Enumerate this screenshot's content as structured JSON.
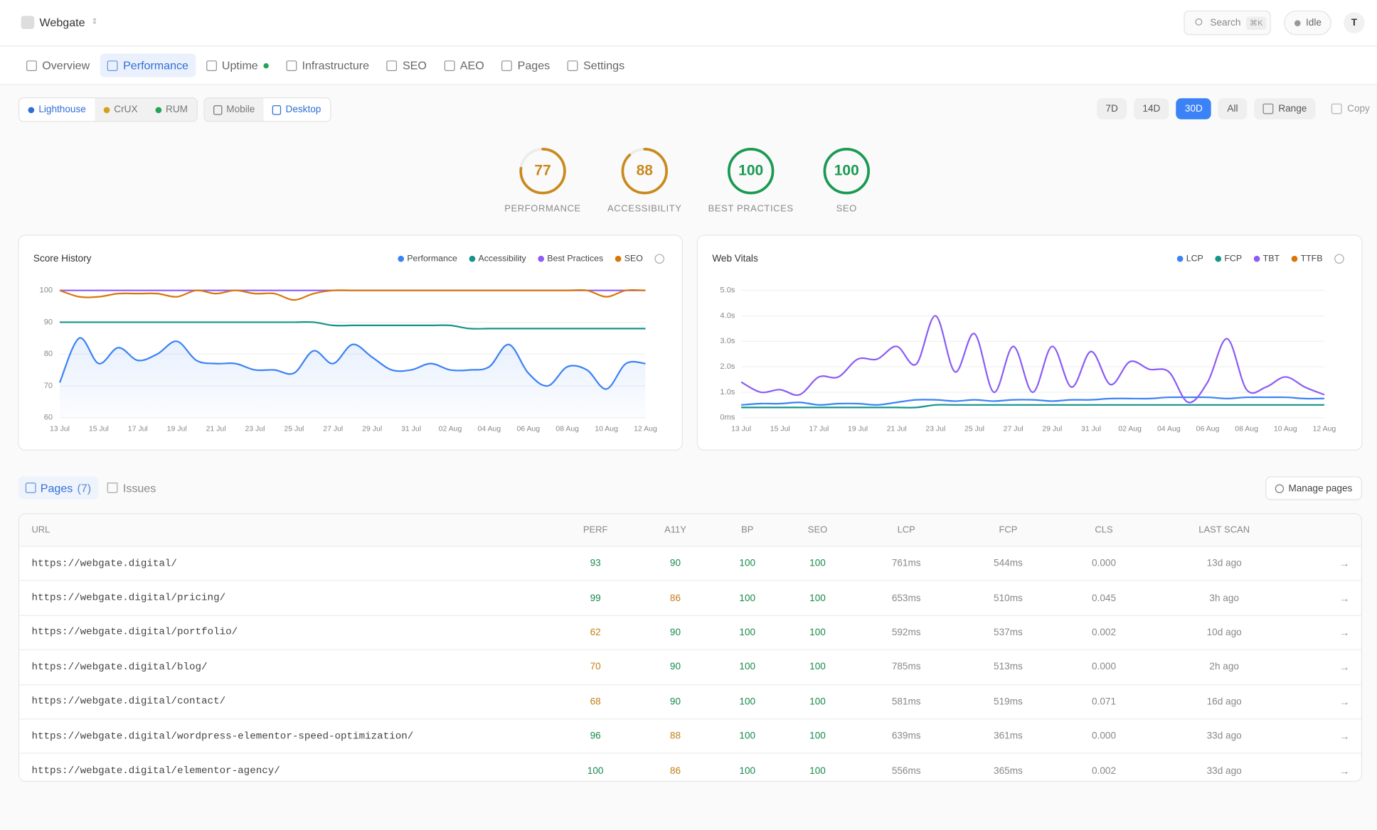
{
  "header": {
    "brand": "Webgate",
    "search": "Search",
    "shortcut": "⌘K",
    "status": "Idle",
    "avatar": "T"
  },
  "nav": [
    "Overview",
    "Performance",
    "Uptime",
    "Infrastructure",
    "SEO",
    "AEO",
    "Pages",
    "Settings"
  ],
  "toolbar": {
    "sources": [
      "Lighthouse",
      "CrUX",
      "RUM"
    ],
    "devices": [
      "Mobile",
      "Desktop"
    ],
    "ranges": [
      "7D",
      "14D",
      "30D",
      "All"
    ],
    "range": "Range",
    "copy": "Copy"
  },
  "scores": [
    {
      "label": "PERFORMANCE",
      "value": 77
    },
    {
      "label": "ACCESSIBILITY",
      "value": 88
    },
    {
      "label": "BEST PRACTICES",
      "value": 100
    },
    {
      "label": "SEO",
      "value": 100
    }
  ],
  "chart_data": [
    {
      "type": "line",
      "title": "Score History",
      "legend": "top-right",
      "grid": true,
      "categories": [
        "13 Jul",
        null,
        "15 Jul",
        null,
        "17 Jul",
        null,
        "19 Jul",
        null,
        "21 Jul",
        null,
        "23 Jul",
        null,
        "25 Jul",
        null,
        "27 Jul",
        null,
        "29 Jul",
        null,
        "31 Jul",
        null,
        "02 Aug",
        null,
        "04 Aug",
        null,
        "06 Aug",
        null,
        "08 Aug",
        null,
        "10 Aug",
        null,
        "12 Aug"
      ],
      "ylim": [
        60,
        100
      ],
      "yticks": [
        60,
        70,
        80,
        90,
        100
      ],
      "series": [
        {
          "name": "Performance",
          "color": "#3b82f6",
          "area": true,
          "values": [
            71,
            85,
            77,
            82,
            78,
            80,
            84,
            78,
            77,
            77,
            75,
            75,
            74,
            81,
            77,
            83,
            79,
            75,
            75,
            77,
            75,
            75,
            76,
            83,
            74,
            70,
            76,
            75,
            69,
            77,
            77
          ]
        },
        {
          "name": "Accessibility",
          "color": "#14948a",
          "values": [
            90,
            90,
            90,
            90,
            90,
            90,
            90,
            90,
            90,
            90,
            90,
            90,
            90,
            90,
            89,
            89,
            89,
            89,
            89,
            89,
            89,
            88,
            88,
            88,
            88,
            88,
            88,
            88,
            88,
            88,
            88
          ]
        },
        {
          "name": "Best Practices",
          "color": "#8b5cf6",
          "values": [
            100,
            100,
            100,
            100,
            100,
            100,
            100,
            100,
            100,
            100,
            100,
            100,
            100,
            100,
            100,
            100,
            100,
            100,
            100,
            100,
            100,
            100,
            100,
            100,
            100,
            100,
            100,
            100,
            100,
            100,
            100
          ]
        },
        {
          "name": "SEO",
          "color": "#d97706",
          "values": [
            100,
            98,
            98,
            99,
            99,
            99,
            98,
            100,
            99,
            100,
            99,
            99,
            97,
            99,
            100,
            100,
            100,
            100,
            100,
            100,
            100,
            100,
            100,
            100,
            100,
            100,
            100,
            100,
            98,
            100,
            100
          ]
        }
      ]
    },
    {
      "type": "line",
      "title": "Web Vitals",
      "legend": "top-right",
      "grid": true,
      "categories": [
        "13 Jul",
        null,
        "15 Jul",
        null,
        "17 Jul",
        null,
        "19 Jul",
        null,
        "21 Jul",
        null,
        "23 Jul",
        null,
        "25 Jul",
        null,
        "27 Jul",
        null,
        "29 Jul",
        null,
        "31 Jul",
        null,
        "02 Aug",
        null,
        "04 Aug",
        null,
        "06 Aug",
        null,
        "08 Aug",
        null,
        "10 Aug",
        null,
        "12 Aug"
      ],
      "ylim": [
        0,
        5
      ],
      "yticks": [
        {
          "value": 0,
          "label": "0ms"
        },
        {
          "value": 1,
          "label": "1.0s"
        },
        {
          "value": 2,
          "label": "2.0s"
        },
        {
          "value": 3,
          "label": "3.0s"
        },
        {
          "value": 4,
          "label": "4.0s"
        },
        {
          "value": 5,
          "label": "5.0s"
        }
      ],
      "series": [
        {
          "name": "LCP",
          "color": "#3b82f6",
          "values": [
            0.5,
            0.55,
            0.55,
            0.6,
            0.5,
            0.55,
            0.55,
            0.5,
            0.6,
            0.7,
            0.7,
            0.65,
            0.7,
            0.65,
            0.7,
            0.7,
            0.65,
            0.7,
            0.7,
            0.75,
            0.75,
            0.75,
            0.8,
            0.8,
            0.8,
            0.75,
            0.8,
            0.8,
            0.8,
            0.75,
            0.75
          ]
        },
        {
          "name": "FCP",
          "color": "#14948a",
          "values": [
            0.4,
            0.4,
            0.4,
            0.4,
            0.4,
            0.4,
            0.4,
            0.4,
            0.4,
            0.4,
            0.5,
            0.5,
            0.5,
            0.5,
            0.5,
            0.5,
            0.5,
            0.5,
            0.5,
            0.5,
            0.5,
            0.5,
            0.5,
            0.5,
            0.5,
            0.5,
            0.5,
            0.5,
            0.5,
            0.5,
            0.5
          ]
        },
        {
          "name": "TBT",
          "color": "#8b5cf6",
          "values": [
            1.4,
            1.0,
            1.1,
            0.9,
            1.6,
            1.6,
            2.3,
            2.3,
            2.8,
            2.1,
            4.0,
            1.8,
            3.3,
            1.0,
            2.8,
            1.0,
            2.8,
            1.2,
            2.6,
            1.3,
            2.2,
            1.9,
            1.8,
            0.6,
            1.4,
            3.1,
            1.1,
            1.2,
            1.6,
            1.2,
            0.9
          ]
        },
        {
          "name": "TTFB",
          "color": "#d97706",
          "values": [
            null,
            null,
            null,
            null,
            null,
            null,
            null,
            null,
            null,
            null,
            null,
            null,
            null,
            null,
            null,
            null,
            null,
            null,
            null,
            null,
            null,
            null,
            null,
            null,
            null,
            null,
            null,
            null,
            null,
            null,
            null
          ]
        }
      ]
    }
  ],
  "tabs": {
    "pages": "Pages",
    "pages_count": "(7)",
    "issues": "Issues",
    "manage": "Manage pages"
  },
  "table": {
    "columns": [
      "URL",
      "PERF",
      "A11Y",
      "BP",
      "SEO",
      "LCP",
      "FCP",
      "CLS",
      "LAST SCAN"
    ],
    "rows": [
      [
        "https://webgate.digital/",
        93,
        90,
        100,
        100,
        "761ms",
        "544ms",
        "0.000",
        "13d ago"
      ],
      [
        "https://webgate.digital/pricing/",
        99,
        86,
        100,
        100,
        "653ms",
        "510ms",
        "0.045",
        "3h ago"
      ],
      [
        "https://webgate.digital/portfolio/",
        62,
        90,
        100,
        100,
        "592ms",
        "537ms",
        "0.002",
        "10d ago"
      ],
      [
        "https://webgate.digital/blog/",
        70,
        90,
        100,
        100,
        "785ms",
        "513ms",
        "0.000",
        "2h ago"
      ],
      [
        "https://webgate.digital/contact/",
        68,
        90,
        100,
        100,
        "581ms",
        "519ms",
        "0.071",
        "16d ago"
      ],
      [
        "https://webgate.digital/wordpress-elementor-speed-optimization/",
        96,
        88,
        100,
        100,
        "639ms",
        "361ms",
        "0.000",
        "33d ago"
      ],
      [
        "https://webgate.digital/elementor-agency/",
        100,
        86,
        100,
        100,
        "556ms",
        "365ms",
        "0.002",
        "33d ago"
      ]
    ]
  }
}
